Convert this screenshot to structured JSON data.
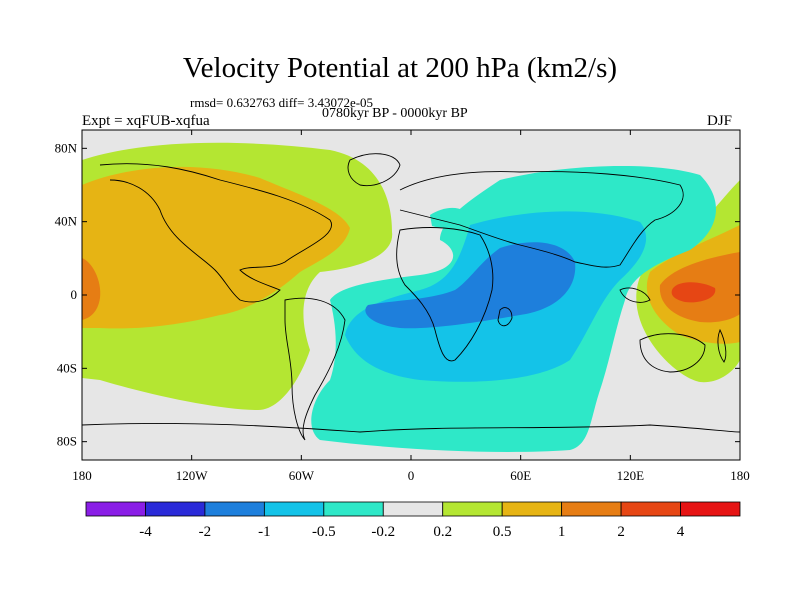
{
  "title": "Velocity Potential at 200 hPa (km2/s)",
  "stats": "rmsd= 0.632763  diff= 3.43072e-05",
  "period": "0780kyr BP - 0000kyr BP",
  "expt": "Expt = xqFUB-xqfua",
  "season": "DJF",
  "lat_labels": [
    "80N",
    "40N",
    "0",
    "40S",
    "80S"
  ],
  "lat_values": [
    80,
    40,
    0,
    -40,
    -80
  ],
  "lon_labels": [
    "180",
    "120W",
    "60W",
    "0",
    "60E",
    "120E",
    "180"
  ],
  "lon_values": [
    -180,
    -120,
    -60,
    0,
    60,
    120,
    180
  ],
  "colorbar": {
    "labels": [
      "-4",
      "-2",
      "-1",
      "-0.5",
      "-0.2",
      "0.2",
      "0.5",
      "1",
      "2",
      "4"
    ],
    "colors": [
      "#8a1ee6",
      "#2a2ad8",
      "#1e7fdc",
      "#14c3e8",
      "#2ee8c8",
      "#e6e6e6",
      "#b4e632",
      "#e6b414",
      "#e67d14",
      "#e64614",
      "#e61414"
    ]
  },
  "colors": {
    "neutral": "#e6e6e6",
    "pos1": "#b4e632",
    "pos2": "#e6b414",
    "pos3": "#e67d14",
    "pos4": "#e64614",
    "neg1": "#2ee8c8",
    "neg2": "#14c3e8",
    "neg3": "#1e7fdc",
    "coast": "#000000"
  }
}
